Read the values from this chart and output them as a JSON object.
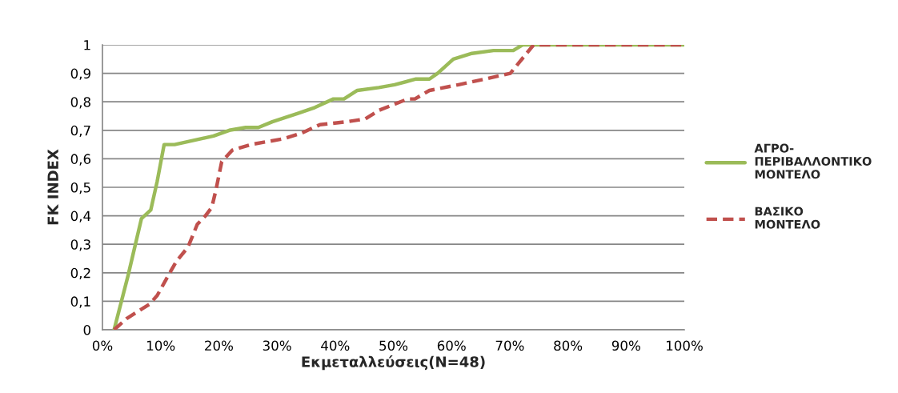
{
  "chart_data": {
    "type": "line",
    "xlabel": "Εκμεταλλεύσεις(N=48)",
    "ylabel": "FK INDEX",
    "xlim": [
      0,
      100
    ],
    "xticks": [
      {
        "value": 0,
        "label": "0%"
      },
      {
        "value": 10,
        "label": "10%"
      },
      {
        "value": 20,
        "label": "20%"
      },
      {
        "value": 30,
        "label": "30%"
      },
      {
        "value": 40,
        "label": "40%"
      },
      {
        "value": 50,
        "label": "50%"
      },
      {
        "value": 60,
        "label": "60%"
      },
      {
        "value": 70,
        "label": "70%"
      },
      {
        "value": 80,
        "label": "80%"
      },
      {
        "value": 90,
        "label": "90%"
      },
      {
        "value": 100,
        "label": "100%"
      }
    ],
    "ylim": [
      0,
      1
    ],
    "yticks": [
      0,
      {
        "value": 0.1,
        "label": "0,1"
      },
      {
        "value": 0.2,
        "label": "0,2"
      },
      {
        "value": 0.3,
        "label": "0,3"
      },
      {
        "value": 0.4,
        "label": "0,4"
      },
      {
        "value": 0.5,
        "label": "0,5"
      },
      {
        "value": 0.6,
        "label": "0,6"
      },
      {
        "value": 0.7,
        "label": "0,7"
      },
      {
        "value": 0.8,
        "label": "0,8"
      },
      {
        "value": 0.9,
        "label": "0,9"
      },
      1
    ],
    "grid": "y",
    "legend": "right",
    "marker": "none",
    "series": [
      {
        "name": "ΑΓΡΟ-ΠΕΡΙΒΑΛΛΟΝΤΙΚΟ ΜΟΝΤΕΛΟ",
        "color": "#9bbb59",
        "line_style": "solid",
        "x": [
          2.0,
          4.4,
          6.7,
          8.3,
          9.4,
          10.6,
          12.4,
          19.1,
          21.8,
          24.6,
          26.8,
          29.2,
          33.7,
          36.5,
          39.7,
          41.5,
          43.8,
          47.5,
          50.2,
          53.9,
          56.2,
          57.6,
          60.3,
          63.5,
          67.2,
          70.6,
          72.2,
          100
        ],
        "values": [
          0,
          0.19,
          0.39,
          0.42,
          0.52,
          0.65,
          0.65,
          0.68,
          0.7,
          0.71,
          0.71,
          0.73,
          0.76,
          0.78,
          0.81,
          0.81,
          0.84,
          0.85,
          0.86,
          0.88,
          0.88,
          0.9,
          0.95,
          0.97,
          0.98,
          0.98,
          1,
          1
        ]
      },
      {
        "name": "ΒΑΣΙΚΟ ΜΟΝΤΕΛΟ",
        "color": "#c0504d",
        "line_style": "dashed",
        "x": [
          2.0,
          4.2,
          8.1,
          9.4,
          11.3,
          12.7,
          14.7,
          16.3,
          17.7,
          18.8,
          19.5,
          20.5,
          22.3,
          25.5,
          31.0,
          34.2,
          37.4,
          42.0,
          45.2,
          47.5,
          51.2,
          52.5,
          53.7,
          56.2,
          61.2,
          65.8,
          70.1,
          71.3,
          74.1,
          100
        ],
        "values": [
          0,
          0.04,
          0.09,
          0.12,
          0.19,
          0.24,
          0.29,
          0.37,
          0.4,
          0.43,
          0.49,
          0.59,
          0.63,
          0.65,
          0.67,
          0.69,
          0.72,
          0.73,
          0.74,
          0.77,
          0.8,
          0.81,
          0.81,
          0.84,
          0.86,
          0.88,
          0.9,
          0.93,
          1,
          1
        ]
      }
    ]
  }
}
